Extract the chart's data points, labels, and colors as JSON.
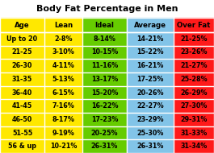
{
  "title": "Body Fat Percentage in Men",
  "headers": [
    "Age",
    "Lean",
    "Ideal",
    "Average",
    "Over Fat"
  ],
  "rows": [
    [
      "Up to 20",
      "2-8%",
      "8-14%",
      "14-21%",
      "21-25%"
    ],
    [
      "21-25",
      "3-10%",
      "10-15%",
      "15-22%",
      "23-26%"
    ],
    [
      "26-30",
      "4-11%",
      "11-16%",
      "16-21%",
      "21-27%"
    ],
    [
      "31-35",
      "5-13%",
      "13-17%",
      "17-25%",
      "25-28%"
    ],
    [
      "36-40",
      "6-15%",
      "15-20%",
      "20-26%",
      "26-29%"
    ],
    [
      "41-45",
      "7-16%",
      "16-22%",
      "22-27%",
      "27-30%"
    ],
    [
      "46-50",
      "8-17%",
      "17-23%",
      "23-29%",
      "29-31%"
    ],
    [
      "51-55",
      "9-19%",
      "20-25%",
      "25-30%",
      "31-33%"
    ],
    [
      "56 & up",
      "10-21%",
      "26-31%",
      "26-31%",
      "31-34%"
    ]
  ],
  "col_colors": [
    "#FFE800",
    "#FFE800",
    "#66CC00",
    "#82C4E8",
    "#FF1A1A"
  ],
  "title_bg": "#FFFFFF",
  "text_color": "#000000",
  "border_color": "#FFFFFF",
  "title_fontsize": 8.0,
  "header_fontsize": 6.2,
  "cell_fontsize": 5.8
}
